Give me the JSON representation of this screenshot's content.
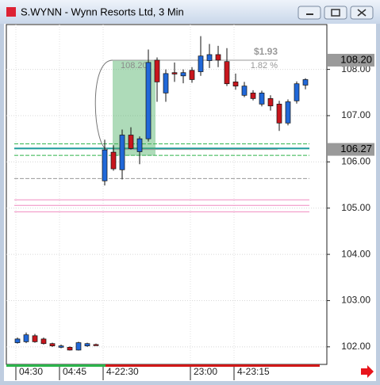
{
  "chart_data": {
    "type": "candlestick",
    "title": "S.WYNN - Wynn Resorts Ltd, 3 Min",
    "categories": [
      "04:30",
      null,
      null,
      null,
      null,
      "04:45",
      null,
      null,
      null,
      null,
      "4-22:30",
      null,
      null,
      null,
      null,
      null,
      null,
      null,
      null,
      null,
      "23:00",
      null,
      null,
      null,
      null,
      "4-23:15",
      null,
      null,
      null,
      null,
      null,
      null,
      null,
      null
    ],
    "open": [
      102.09,
      102.11,
      102.24,
      102.17,
      102.07,
      101.99,
      101.99,
      101.93,
      102.02,
      102.05,
      105.59,
      106.21,
      105.83,
      106.58,
      106.22,
      106.5,
      108.2,
      107.49,
      107.93,
      107.86,
      107.98,
      107.95,
      108.19,
      108.32,
      108.17,
      107.73,
      107.44,
      107.49,
      107.25,
      107.37,
      107.25,
      106.84,
      107.32,
      107.66
    ],
    "high": [
      102.2,
      102.31,
      102.28,
      102.2,
      102.09,
      102.05,
      102.01,
      102.11,
      102.09,
      102.07,
      106.48,
      106.36,
      106.7,
      106.75,
      106.55,
      108.43,
      108.26,
      108.0,
      108.15,
      108.0,
      108.05,
      108.72,
      108.55,
      108.51,
      108.46,
      107.91,
      107.73,
      107.55,
      107.54,
      107.44,
      107.32,
      107.35,
      107.74,
      107.81
    ],
    "low": [
      102.07,
      102.08,
      102.09,
      102.05,
      102.0,
      101.97,
      101.92,
      101.92,
      102.0,
      102.03,
      105.49,
      105.81,
      105.62,
      106.27,
      105.95,
      106.44,
      107.3,
      107.3,
      107.73,
      107.7,
      107.71,
      107.86,
      108.03,
      108.05,
      107.64,
      107.56,
      107.4,
      107.33,
      107.2,
      107.11,
      106.67,
      106.79,
      107.26,
      107.57
    ],
    "close": [
      102.17,
      102.26,
      102.11,
      102.07,
      102.02,
      102.02,
      101.93,
      102.09,
      102.07,
      102.04,
      106.26,
      105.85,
      106.58,
      106.29,
      106.5,
      108.15,
      107.73,
      107.91,
      107.9,
      107.93,
      107.78,
      108.29,
      108.32,
      108.2,
      107.69,
      107.64,
      107.64,
      107.37,
      107.49,
      107.21,
      106.84,
      107.3,
      107.69,
      107.78
    ],
    "up_color": "#2168d8",
    "down_color": "#c8161d",
    "ylim": [
      101.62,
      108.97
    ],
    "yticks": [
      {
        "value": 102,
        "label": "102.00"
      },
      {
        "value": 103,
        "label": "103.00"
      },
      {
        "value": 104,
        "label": "104.00"
      },
      {
        "value": 105,
        "label": "105.00"
      },
      {
        "value": 106,
        "label": "106.00"
      },
      {
        "value": 107,
        "label": "107.00"
      },
      {
        "value": 108,
        "label": "108.00"
      }
    ],
    "grid": true,
    "level_lines": [
      {
        "value": 106.39,
        "color": "#2db34a",
        "style": "dashed"
      },
      {
        "value": 106.29,
        "color": "#1a9a9a",
        "style": "solid"
      },
      {
        "value": 106.14,
        "color": "#2db34a",
        "style": "dashed"
      },
      {
        "value": 105.64,
        "color": "#999999",
        "style": "dashed"
      },
      {
        "value": 105.18,
        "color": "#f08cc0",
        "style": "solid"
      },
      {
        "value": 105.06,
        "color": "#f08cc0",
        "style": "solid"
      },
      {
        "value": 104.92,
        "color": "#f08cc0",
        "style": "solid"
      }
    ],
    "price_tags": [
      {
        "value": 108.2,
        "label": "108.20"
      },
      {
        "value": 106.27,
        "label": "106.27"
      }
    ],
    "measure": {
      "from": 106.27,
      "to": 108.2,
      "change_label": "$1.93",
      "percent_label": "1.82 %"
    }
  }
}
